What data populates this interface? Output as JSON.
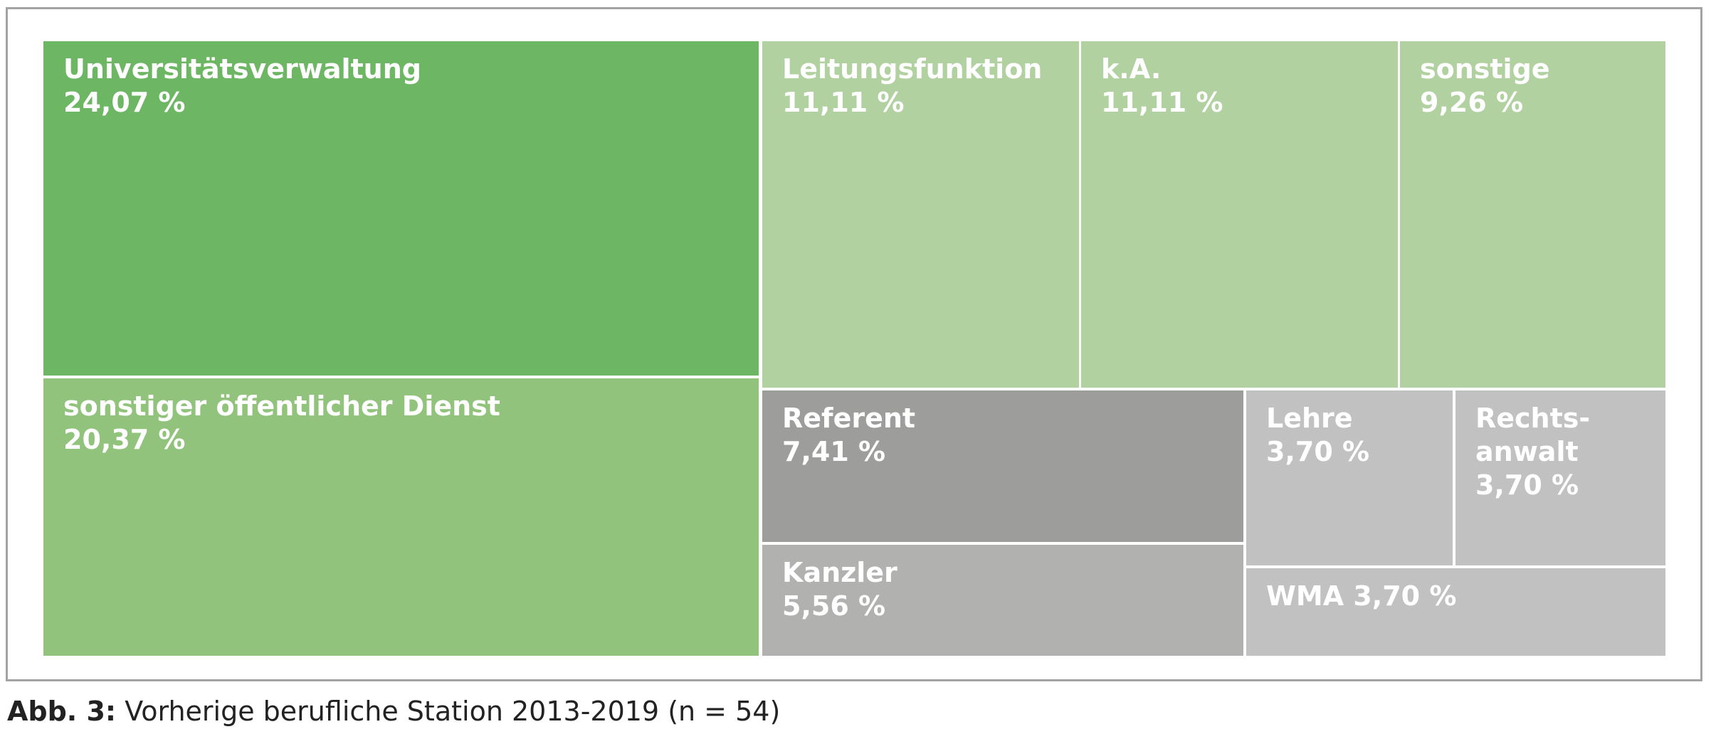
{
  "chart_data": {
    "type": "treemap",
    "tiles": [
      {
        "name": "Universitätsverwaltung",
        "value_label": "24,07 %",
        "value": 24.07,
        "color": "#6cb664"
      },
      {
        "name": "sonstiger öffentlicher Dienst",
        "value_label": "20,37 %",
        "value": 20.37,
        "color": "#91c37d"
      },
      {
        "name": "Leitungsfunktion",
        "value_label": "11,11 %",
        "value": 11.11,
        "color": "#b2d1a0"
      },
      {
        "name": "k.A.",
        "value_label": "11,11 %",
        "value": 11.11,
        "color": "#b2d1a0"
      },
      {
        "name": "sonstige",
        "value_label": "9,26 %",
        "value": 9.26,
        "color": "#b2d1a0"
      },
      {
        "name": "Referent",
        "value_label": "7,41 %",
        "value": 7.41,
        "color": "#9d9d9c"
      },
      {
        "name": "Kanzler",
        "value_label": "5,56 %",
        "value": 5.56,
        "color": "#b1b1b0"
      },
      {
        "name": "Lehre",
        "value_label": "3,70 %",
        "value": 3.7,
        "color": "#c1c1c1"
      },
      {
        "name": "Rechts-anwalt",
        "value_label": "3,70 %",
        "value": 3.7,
        "color": "#c1c1c1"
      },
      {
        "name": "WMA",
        "value_label": "3,70 %",
        "value": 3.7,
        "color": "#c1c1c1"
      }
    ]
  },
  "caption": {
    "lead": "Abb. 3:",
    "text": " Vorherige berufliche Station 2013-2019 (n = 54)"
  }
}
